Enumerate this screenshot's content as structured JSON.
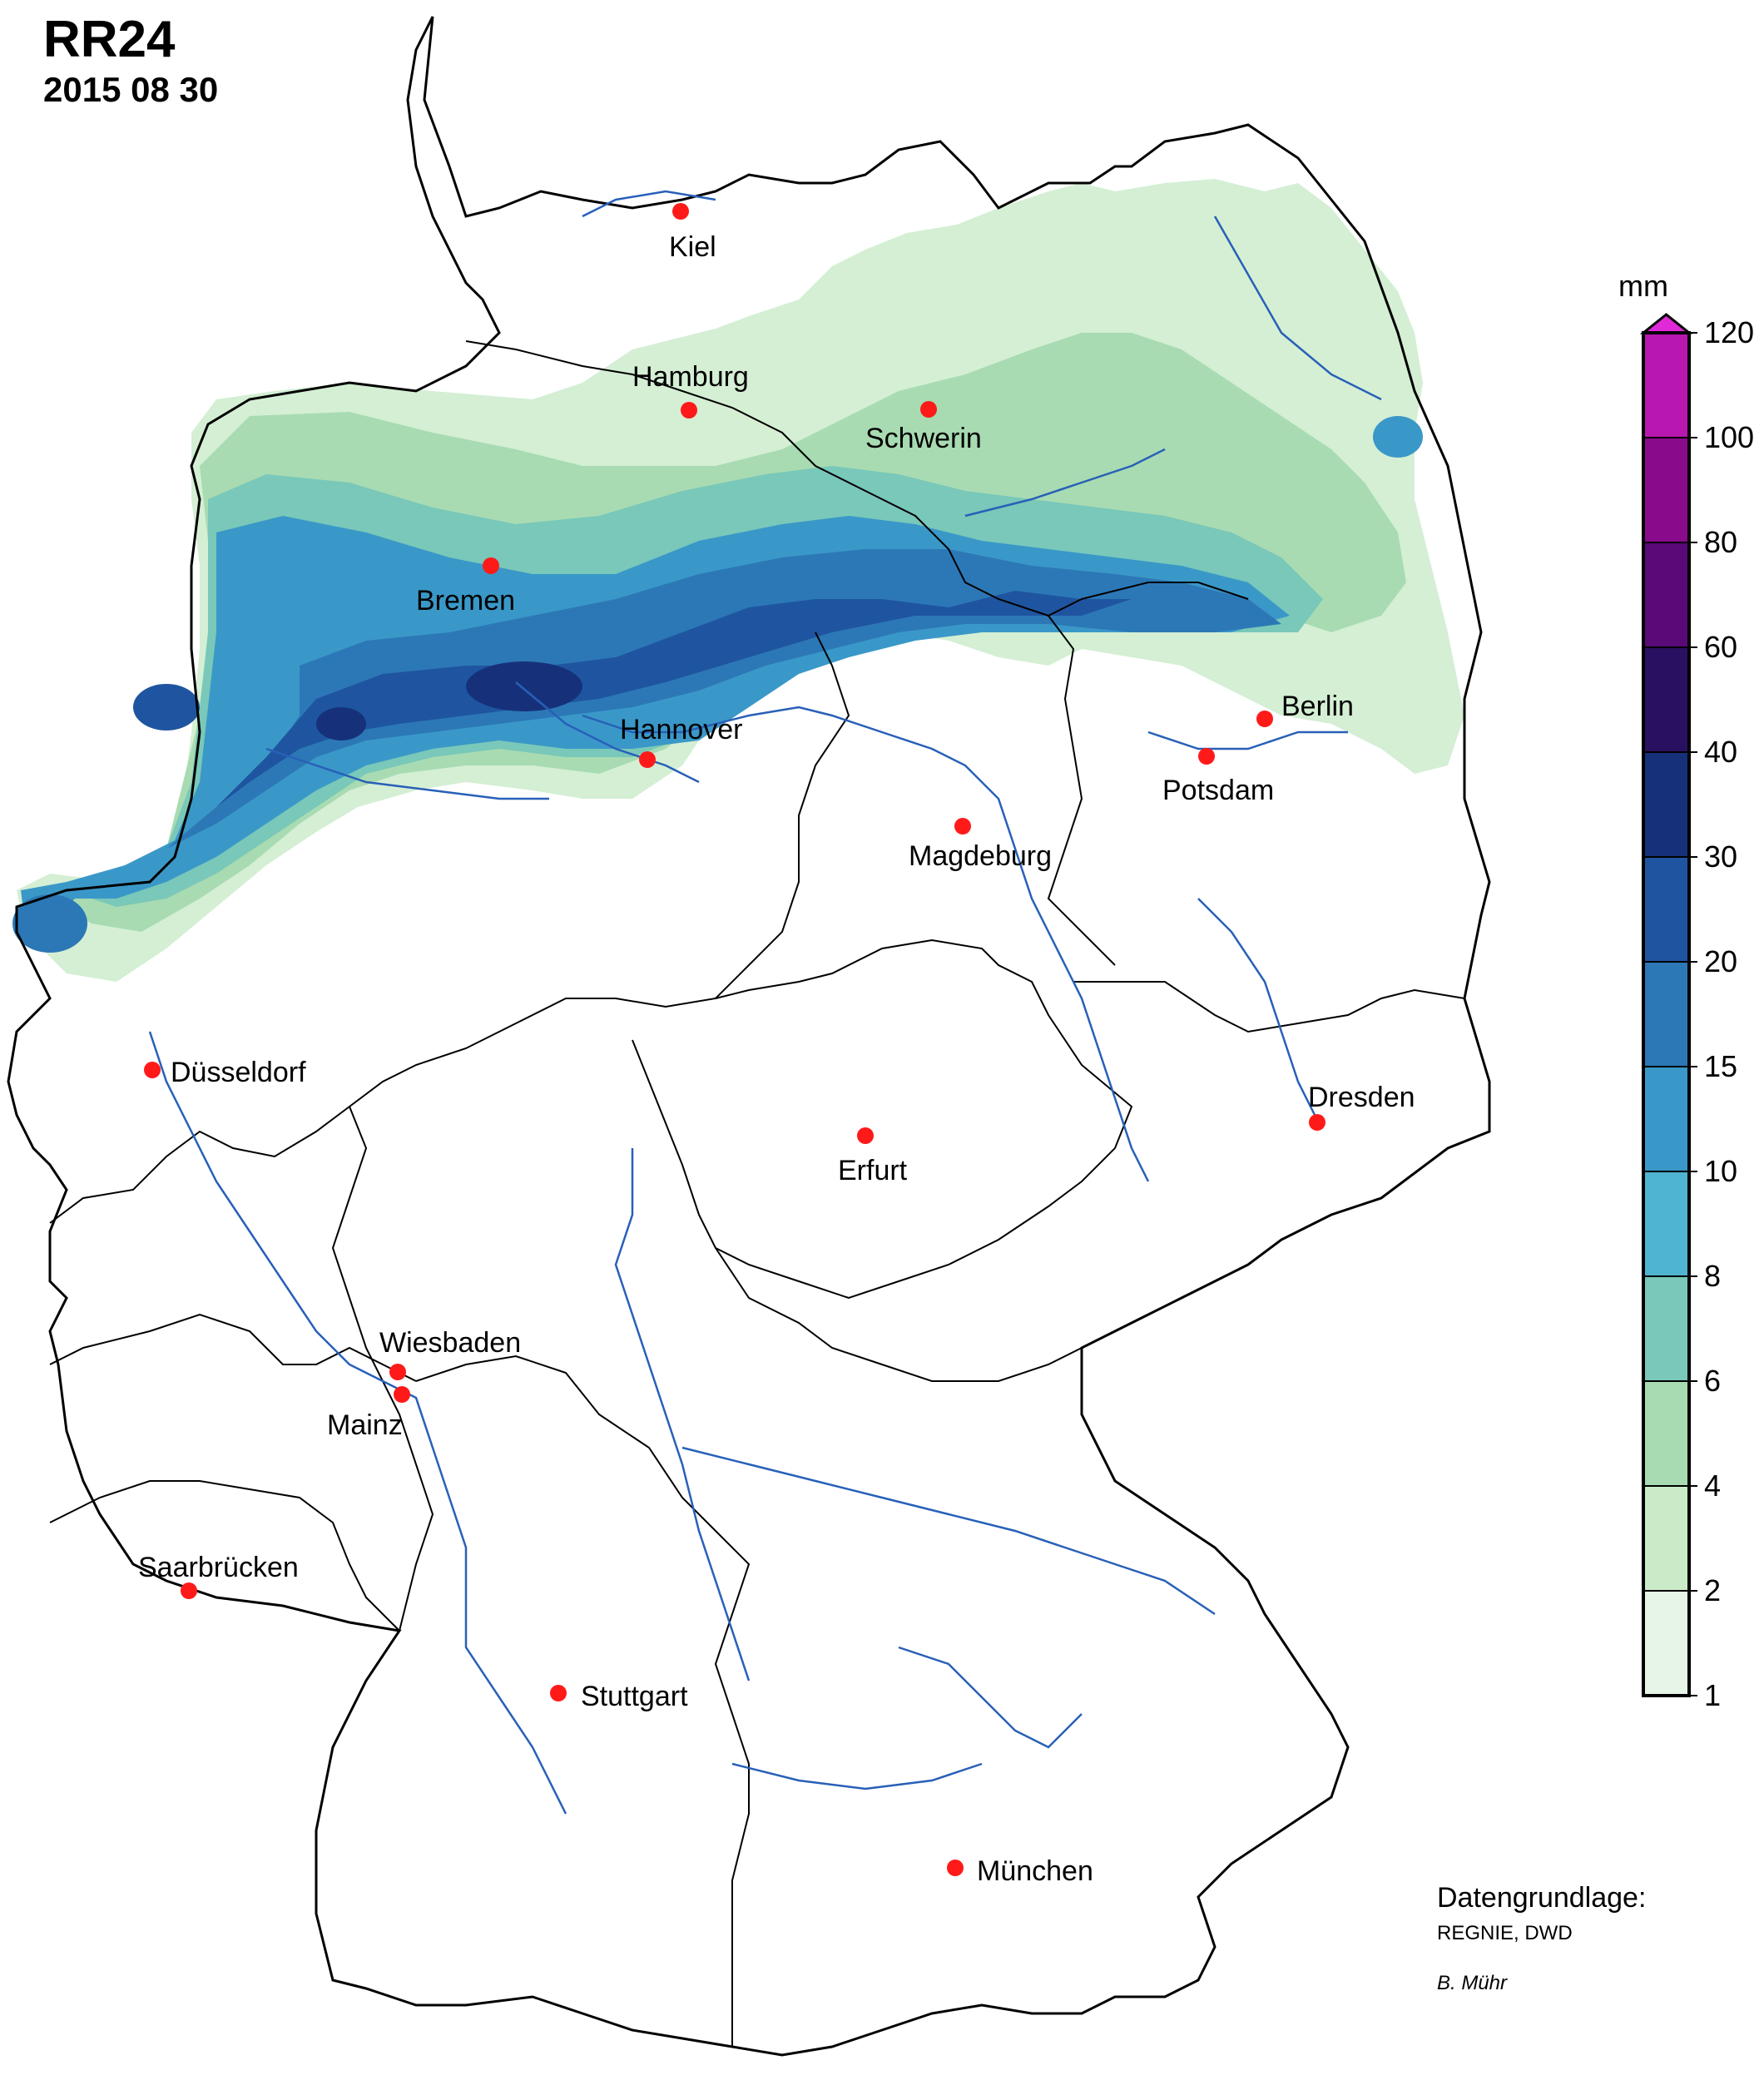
{
  "header": {
    "title": "RR24",
    "date": "2015 08 30"
  },
  "legend": {
    "unit": "mm",
    "ticks": [
      "1",
      "2",
      "4",
      "6",
      "8",
      "10",
      "15",
      "20",
      "30",
      "40",
      "60",
      "80",
      "100",
      "120"
    ],
    "colors": [
      "#e6f5e6",
      "#c9ebc7",
      "#a8dbb2",
      "#79c8b9",
      "#4fb4d2",
      "#3a98c8",
      "#2c78b6",
      "#1f55a0",
      "#16317a",
      "#2a1060",
      "#5a0a78",
      "#8a0a8c",
      "#b818b0",
      "#e02ad8"
    ]
  },
  "cities": [
    {
      "name": "Kiel"
    },
    {
      "name": "Hamburg"
    },
    {
      "name": "Schwerin"
    },
    {
      "name": "Bremen"
    },
    {
      "name": "Hannover"
    },
    {
      "name": "Berlin"
    },
    {
      "name": "Potsdam"
    },
    {
      "name": "Magdeburg"
    },
    {
      "name": "Düsseldorf"
    },
    {
      "name": "Dresden"
    },
    {
      "name": "Erfurt"
    },
    {
      "name": "Wiesbaden"
    },
    {
      "name": "Mainz"
    },
    {
      "name": "Saarbrücken"
    },
    {
      "name": "Stuttgart"
    },
    {
      "name": "München"
    }
  ],
  "credits": {
    "heading": "Datengrundlage:",
    "source": "REGNIE, DWD",
    "author": "B. Mühr"
  }
}
